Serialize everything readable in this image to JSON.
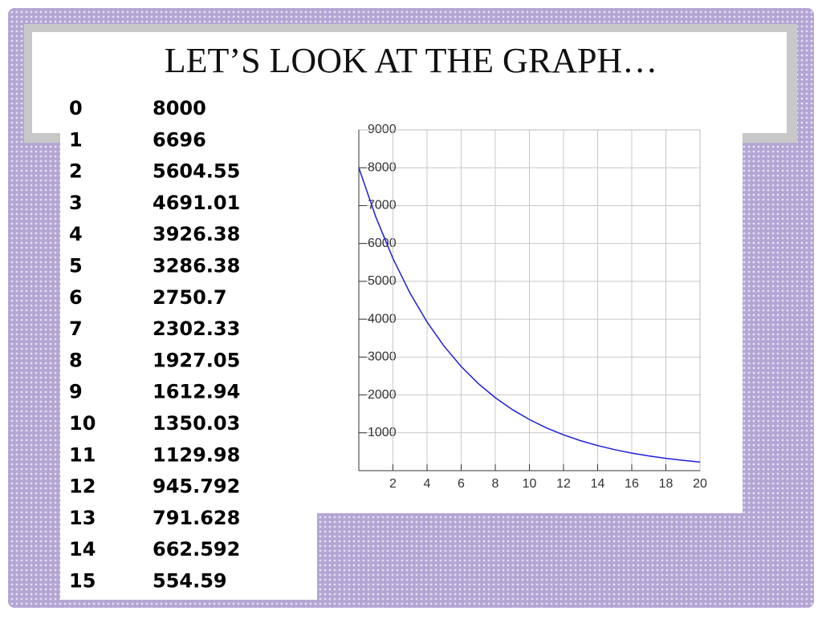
{
  "title": "LET’S LOOK AT THE GRAPH…",
  "table": {
    "rows": [
      [
        "0",
        "8000"
      ],
      [
        "1",
        "6696"
      ],
      [
        "2",
        "5604.55"
      ],
      [
        "3",
        "4691.01"
      ],
      [
        "4",
        "3926.38"
      ],
      [
        "5",
        "3286.38"
      ],
      [
        "6",
        "2750.7"
      ],
      [
        "7",
        "2302.33"
      ],
      [
        "8",
        "1927.05"
      ],
      [
        "9",
        "1612.94"
      ],
      [
        "10",
        "1350.03"
      ],
      [
        "11",
        "1129.98"
      ],
      [
        "12",
        "945.792"
      ],
      [
        "13",
        "791.628"
      ],
      [
        "14",
        "662.592"
      ],
      [
        "15",
        "554.59"
      ]
    ]
  },
  "chart_data": {
    "type": "line",
    "x": [
      0,
      1,
      2,
      3,
      4,
      5,
      6,
      7,
      8,
      9,
      10,
      11,
      12,
      13,
      14,
      15,
      16,
      17,
      18,
      19,
      20
    ],
    "values": [
      8000,
      6696,
      5604.55,
      4691.01,
      3926.38,
      3286.38,
      2750.7,
      2302.33,
      1927.05,
      1612.94,
      1350.03,
      1129.98,
      945.792,
      791.628,
      662.592,
      554.59,
      464.2,
      388.5,
      325.2,
      272.2,
      227.8
    ],
    "color": "#1f1fd8",
    "xlim": [
      0,
      20
    ],
    "ylim": [
      0,
      9000
    ],
    "xticks": [
      2,
      4,
      6,
      8,
      10,
      12,
      14,
      16,
      18,
      20
    ],
    "yticks": [
      1000,
      2000,
      3000,
      4000,
      5000,
      6000,
      7000,
      8000,
      9000
    ],
    "grid": true
  }
}
